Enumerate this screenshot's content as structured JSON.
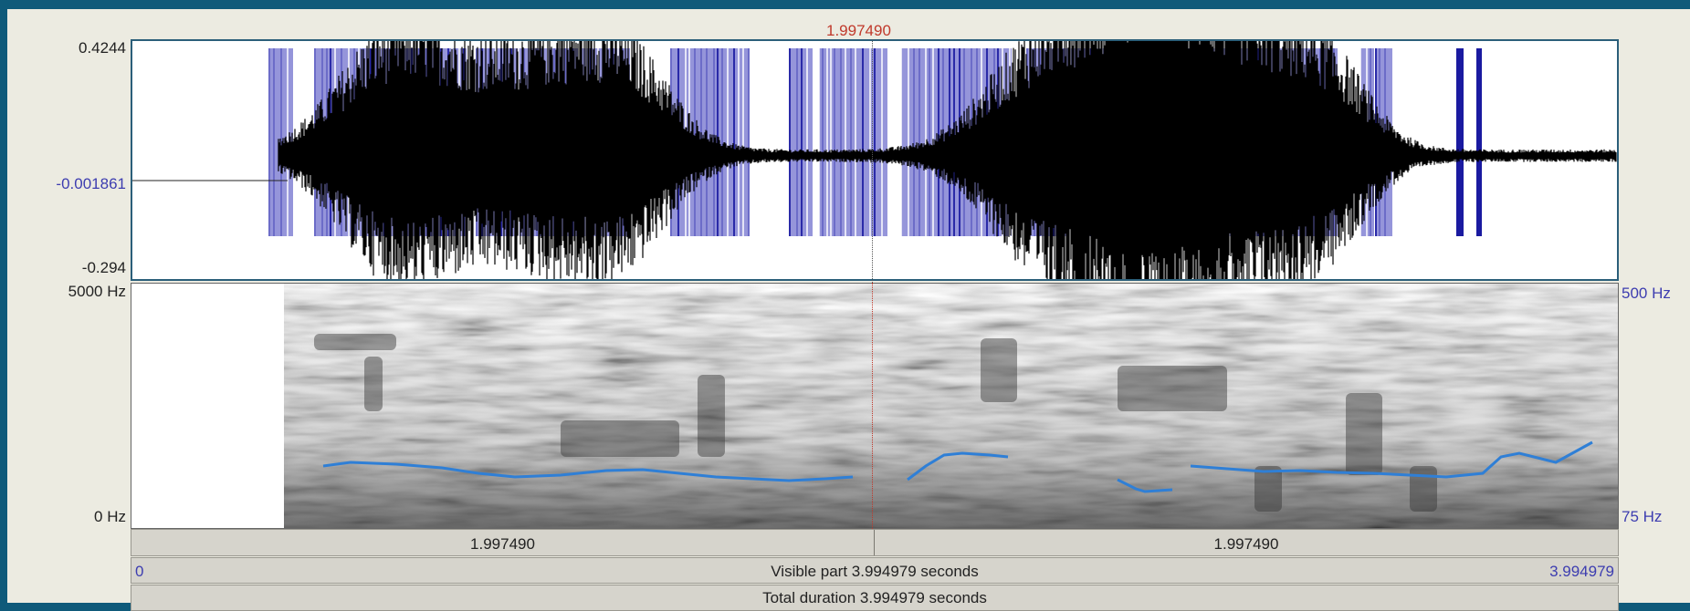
{
  "cursor": {
    "time_label": "1.997490"
  },
  "waveform": {
    "y_max_label": "0.4244",
    "y_mid_label": "-0.001861",
    "y_min_label": "-0.294"
  },
  "spectrogram": {
    "freq_top_label": "5000 Hz",
    "freq_bottom_label": "0 Hz",
    "pitch_top_label": "500 Hz",
    "pitch_bottom_label": "75 Hz"
  },
  "time_bar": {
    "left_half_label": "1.997490",
    "right_half_label": "1.997490"
  },
  "visible_bar": {
    "start_label": "0",
    "center_label": "Visible part 3.994979 seconds",
    "end_label": "3.994979"
  },
  "total_bar": {
    "label": "Total duration 3.994979 seconds"
  },
  "colors": {
    "frame_background": "#0f5a7a",
    "selection_band": "#7a7ad0",
    "pitch_line": "#2f7fd6",
    "cursor": "#c0392b"
  }
}
